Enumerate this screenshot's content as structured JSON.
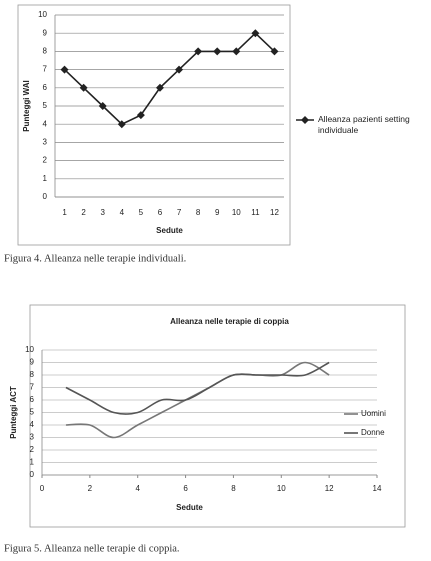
{
  "chart_data": [
    {
      "type": "line",
      "x_label": "Sedute",
      "y_label": "Punteggi WAI",
      "categories": [
        "1",
        "2",
        "3",
        "4",
        "5",
        "6",
        "7",
        "8",
        "9",
        "10",
        "11",
        "12"
      ],
      "series": [
        {
          "name": "Alleanza pazienti setting individuale",
          "color": "#222222",
          "marker": "diamond",
          "values": [
            7,
            6,
            5,
            4,
            4.5,
            6,
            7,
            8,
            8,
            8,
            9,
            8
          ]
        }
      ],
      "ylim": [
        0,
        10
      ],
      "yticks": [
        0,
        1,
        2,
        3,
        4,
        5,
        6,
        7,
        8,
        9,
        10
      ],
      "grid": true,
      "legend": "right",
      "caption": "Figura 4. Alleanza nelle terapie individuali."
    },
    {
      "type": "line",
      "title": "Alleanza nelle terapie di coppia",
      "x_label": "Sedute",
      "y_label": "Punteggi ACT",
      "x": [
        1,
        2,
        3,
        4,
        5,
        6,
        7,
        8,
        9,
        10,
        11,
        12
      ],
      "xlim": [
        0,
        14
      ],
      "xticks": [
        0,
        2,
        4,
        6,
        8,
        10,
        12,
        14
      ],
      "series": [
        {
          "name": "Uomini",
          "color": "#777777",
          "values": [
            4,
            4,
            3,
            4,
            5,
            6,
            7,
            8,
            8,
            8,
            9,
            8
          ]
        },
        {
          "name": "Donne",
          "color": "#555555",
          "values": [
            7,
            6,
            5,
            5,
            6,
            6,
            7,
            8,
            8,
            8,
            8,
            9
          ]
        }
      ],
      "ylim": [
        0,
        10
      ],
      "yticks": [
        0,
        1,
        2,
        3,
        4,
        5,
        6,
        7,
        8,
        9,
        10
      ],
      "grid": true,
      "smooth": true,
      "legend": "right",
      "caption": "Figura 5. Alleanza nelle terapie di coppia."
    }
  ]
}
